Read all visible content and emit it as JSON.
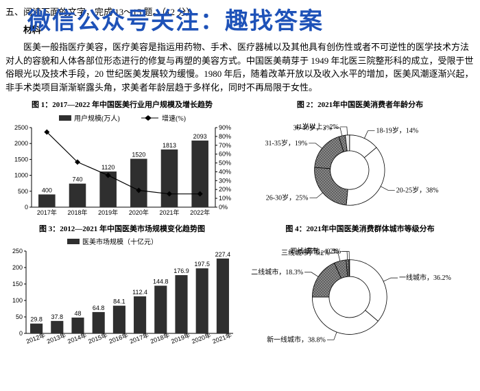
{
  "watermark": "微信公众号关注：趣找答案",
  "header_line": "五、阅读下面的文字，完成 13～15 题。（12 分）",
  "material_label": "材料",
  "body_text": "医美一般指医疗美容，医疗美容是指运用药物、手术、医疗器械以及其他具有创伤性或者不可逆性的医学技术方法对人的容貌和人体各部位形态进行的修复与再塑的美容方式。中国医美萌芽于 1949 年北医三院整形科的成立，受限于世俗眼光以及技术手段，20 世纪医美发展较为缓慢。1980 年后，随着改革开放以及收入水平的增加，医美风潮逐渐兴起，非手术类项目渐渐崭露头角，求美者年龄层趋于多样化，同时不再局限于女性。",
  "charts": {
    "fig1": {
      "title": "图 1：2017—2022 年中国医美行业用户规模及增长趋势",
      "legend_bar": "用户规模(万人)",
      "legend_line": "增速(%)",
      "categories": [
        "2017年",
        "2018年",
        "2019年",
        "2020年",
        "2021年",
        "2022年"
      ],
      "bar_values": [
        400,
        740,
        1120,
        1520,
        1813,
        2093
      ],
      "line_values": [
        85,
        51,
        36,
        19,
        15,
        15
      ],
      "y_left_max": 2500,
      "y_left_step": 500,
      "y_right_max": 90,
      "y_right_step": 10,
      "bar_color": "#2f2f2f",
      "line_color": "#000000",
      "bg": "#ffffff"
    },
    "fig2": {
      "title": "图 2：2021年中国医美消费者年龄分布",
      "slices": [
        {
          "label": "18-19岁",
          "value": 14,
          "color": "#ffffff",
          "texture": false
        },
        {
          "label": "20-25岁",
          "value": 38,
          "color": "#ffffff",
          "texture": false
        },
        {
          "label": "26-30岁",
          "value": 25,
          "color": "#777777",
          "texture": true
        },
        {
          "label": "31-35岁",
          "value": 19,
          "color": "#555555",
          "texture": true
        },
        {
          "label": "36-40岁",
          "value": 3,
          "color": "#222222",
          "texture": true
        },
        {
          "label": "41岁以上",
          "value": 2,
          "color": "#eeeeee",
          "texture": false
        }
      ],
      "inner_ratio": 0.55
    },
    "fig3": {
      "title": "图 3：2012—2021 年中国医美市场规模变化趋势图",
      "legend": "医美市场规模（十亿元）",
      "categories": [
        "2012年",
        "2013年",
        "2014年",
        "2015年",
        "2016年",
        "2017年",
        "2018年",
        "2019年",
        "2020年",
        "2021年"
      ],
      "values": [
        29.8,
        37.8,
        48,
        64.8,
        84.1,
        112.4,
        144.8,
        176.9,
        197.5,
        227.4
      ],
      "y_max": 250,
      "y_step": 50,
      "bar_color": "#2f2f2f"
    },
    "fig4": {
      "title": "图 4：2021年中国医美消费群体城市等级分布",
      "slices": [
        {
          "label": "一线城市",
          "value": 36.2,
          "color": "#ffffff",
          "texture": false
        },
        {
          "label": "新一线城市",
          "value": 38.8,
          "color": "#ffffff",
          "texture": false
        },
        {
          "label": "二线城市",
          "value": 18.3,
          "color": "#666666",
          "texture": true
        },
        {
          "label": "三线城市",
          "value": 5.2,
          "color": "#333333",
          "texture": true
        },
        {
          "label": "四线城市",
          "value": 1.2,
          "color": "#888888",
          "texture": true
        },
        {
          "label": "其他",
          "value": 0.3,
          "color": "#bbbbbb",
          "texture": false
        }
      ],
      "inner_ratio": 0.55
    }
  }
}
